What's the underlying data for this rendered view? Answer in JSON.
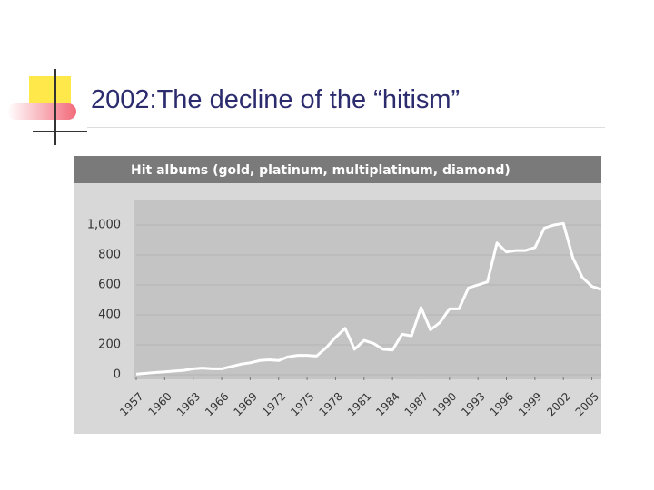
{
  "slide_title": "2002:The decline of the “hitism”",
  "chart_data": {
    "type": "line",
    "title": "Hit albums (gold, platinum, multiplatinum, diamond)",
    "x": [
      1957,
      1958,
      1959,
      1960,
      1961,
      1962,
      1963,
      1964,
      1965,
      1966,
      1967,
      1968,
      1969,
      1970,
      1971,
      1972,
      1973,
      1974,
      1975,
      1976,
      1977,
      1978,
      1979,
      1980,
      1981,
      1982,
      1983,
      1984,
      1985,
      1986,
      1987,
      1988,
      1989,
      1990,
      1991,
      1992,
      1993,
      1994,
      1995,
      1996,
      1997,
      1998,
      1999,
      2000,
      2001,
      2002,
      2003,
      2004,
      2005,
      2006
    ],
    "values": [
      5,
      10,
      15,
      20,
      25,
      30,
      40,
      45,
      40,
      40,
      55,
      70,
      80,
      95,
      100,
      95,
      120,
      130,
      130,
      125,
      180,
      250,
      310,
      170,
      230,
      210,
      170,
      165,
      270,
      260,
      450,
      300,
      350,
      440,
      440,
      580,
      600,
      620,
      880,
      820,
      830,
      830,
      850,
      980,
      1000,
      1010,
      780,
      650,
      590,
      570
    ],
    "color": "#ffffff",
    "xlim": [
      1957,
      2006
    ],
    "xticks": [
      1957,
      1960,
      1963,
      1966,
      1969,
      1972,
      1975,
      1978,
      1981,
      1984,
      1987,
      1990,
      1993,
      1996,
      1999,
      2002,
      2005
    ],
    "ylim": [
      0,
      1000
    ],
    "yticks": [
      0,
      200,
      400,
      600,
      800,
      {
        "value": 1000,
        "label": "1,000"
      }
    ],
    "grid": true
  }
}
